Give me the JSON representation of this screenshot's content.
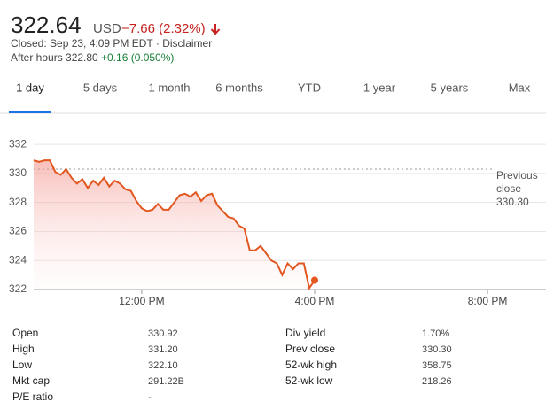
{
  "header": {
    "price": "322.64",
    "currency": "USD",
    "change": "−7.66 (2.32%)",
    "closed": "Closed: Sep 23, 4:09 PM EDT · Disclaimer",
    "after_hours": "After hours 322.80",
    "after_hours_change": "+0.16 (0.050%)"
  },
  "tabs": [
    "1 day",
    "5 days",
    "1 month",
    "6 months",
    "YTD",
    "1 year",
    "5 years",
    "Max"
  ],
  "chart_data": {
    "type": "line",
    "color": "#e2561f",
    "x": [
      9.5,
      9.625,
      9.75,
      9.875,
      10,
      10.125,
      10.25,
      10.375,
      10.5,
      10.625,
      10.75,
      10.875,
      11,
      11.125,
      11.25,
      11.375,
      11.5,
      11.625,
      11.75,
      11.875,
      12,
      12.125,
      12.25,
      12.375,
      12.5,
      12.625,
      12.75,
      12.875,
      13,
      13.125,
      13.25,
      13.375,
      13.5,
      13.625,
      13.75,
      13.875,
      14,
      14.125,
      14.25,
      14.375,
      14.5,
      14.625,
      14.75,
      14.875,
      15,
      15.125,
      15.25,
      15.375,
      15.5,
      15.625,
      15.75,
      15.875,
      16
    ],
    "values": [
      330.9,
      330.8,
      330.9,
      330.9,
      330.1,
      329.9,
      330.3,
      329.7,
      329.3,
      329.6,
      329.0,
      329.5,
      329.2,
      329.7,
      329.1,
      329.5,
      329.3,
      328.9,
      328.8,
      328.1,
      327.6,
      327.4,
      327.5,
      327.9,
      327.5,
      327.5,
      328.0,
      328.5,
      328.6,
      328.4,
      328.7,
      328.1,
      328.5,
      328.6,
      327.8,
      327.4,
      327.0,
      326.9,
      326.4,
      326.2,
      324.7,
      324.7,
      325.0,
      324.5,
      324.0,
      323.8,
      323.0,
      323.8,
      323.4,
      323.8,
      323.8,
      322.1,
      322.64
    ],
    "xlim": [
      9.5,
      21.27
    ],
    "ylim": [
      322,
      332.8
    ],
    "xticks": [
      {
        "value": 12,
        "label": "12:00 PM"
      },
      {
        "value": 16,
        "label": "4:00 PM"
      },
      {
        "value": 20,
        "label": "8:00 PM"
      }
    ],
    "yticks": [
      322,
      324,
      326,
      328,
      330,
      332
    ],
    "grid": true,
    "reference_line": {
      "name": "Previous close",
      "value": 330.3,
      "label": "330.30"
    }
  },
  "stats": {
    "left": [
      [
        "Open",
        "330.92"
      ],
      [
        "High",
        "331.20"
      ],
      [
        "Low",
        "322.10"
      ],
      [
        "Mkt cap",
        "291.22B"
      ],
      [
        "P/E ratio",
        "-"
      ]
    ],
    "right": [
      [
        "Div yield",
        "1.70%"
      ],
      [
        "Prev close",
        "330.30"
      ],
      [
        "52-wk high",
        "358.75"
      ],
      [
        "52-wk low",
        "218.26"
      ]
    ]
  }
}
